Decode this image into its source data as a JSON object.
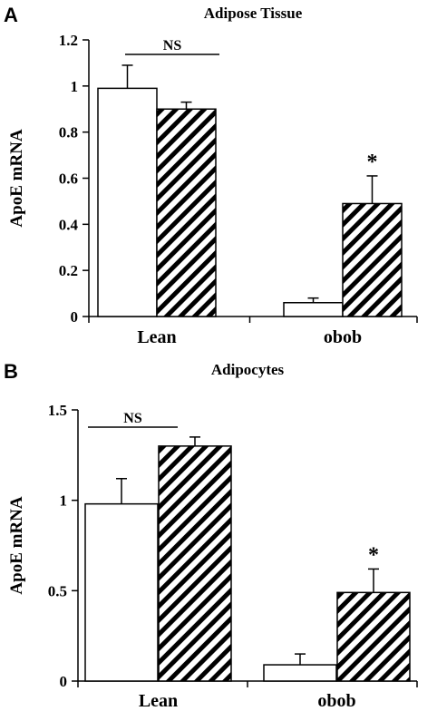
{
  "chart_data": [
    {
      "panel": "A",
      "type": "bar",
      "title": "Adipose Tissue",
      "xlabel": "",
      "ylabel": "ApoE mRNA",
      "ylim": [
        0,
        1.2
      ],
      "yticks": [
        "0",
        "0.2",
        "0.4",
        "0.6",
        "0.8",
        "1",
        "1.2"
      ],
      "categories": [
        "Lean",
        "obob"
      ],
      "series": [
        {
          "style": "white",
          "values": [
            0.99,
            0.06
          ],
          "errors": [
            0.1,
            0.02
          ]
        },
        {
          "style": "hatched",
          "values": [
            0.9,
            0.49
          ],
          "errors": [
            0.03,
            0.12
          ]
        }
      ],
      "annotations": [
        {
          "text": "NS",
          "category": "Lean"
        },
        {
          "text": "*",
          "category": "obob"
        }
      ],
      "grid": false,
      "legend": "none"
    },
    {
      "panel": "B",
      "type": "bar",
      "title": "Adipocytes",
      "xlabel": "",
      "ylabel": "ApoE mRNA",
      "ylim": [
        0,
        1.5
      ],
      "yticks": [
        "0",
        "0.5",
        "1",
        "1.5"
      ],
      "categories": [
        "Lean",
        "obob"
      ],
      "series": [
        {
          "style": "white",
          "values": [
            0.98,
            0.09
          ],
          "errors": [
            0.14,
            0.06
          ]
        },
        {
          "style": "hatched",
          "values": [
            1.3,
            0.49
          ],
          "errors": [
            0.05,
            0.13
          ]
        }
      ],
      "annotations": [
        {
          "text": "NS",
          "category": "Lean"
        },
        {
          "text": "*",
          "category": "obob"
        }
      ],
      "grid": false,
      "legend": "none"
    }
  ]
}
